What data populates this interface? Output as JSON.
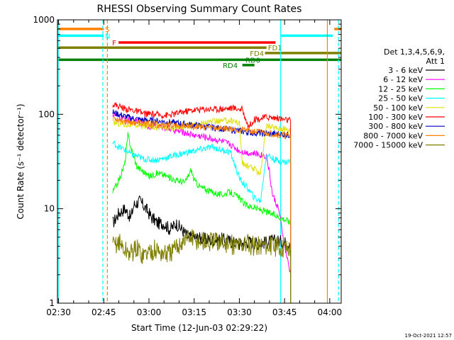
{
  "chart_data": {
    "type": "line",
    "title": "RHESSI Observing Summary Count Rates",
    "xlabel": "Start Time (12-Jun-03 02:29:22)",
    "ylabel": "Count Rate (s⁻¹ detector⁻¹)",
    "yscale": "log",
    "ylim": [
      1,
      1000
    ],
    "xlim_minutes": [
      -0.37,
      93.8
    ],
    "xticks": [
      {
        "label": "02:30",
        "t": 0
      },
      {
        "label": "02:45",
        "t": 15
      },
      {
        "label": "03:00",
        "t": 30
      },
      {
        "label": "03:15",
        "t": 45
      },
      {
        "label": "03:30",
        "t": 60
      },
      {
        "label": "03:45",
        "t": 75
      },
      {
        "label": "04:00",
        "t": 90
      }
    ],
    "yticks": [
      {
        "label": "1",
        "v": 1
      },
      {
        "label": "10",
        "v": 10
      },
      {
        "label": "100",
        "v": 100
      },
      {
        "label": "1000",
        "v": 1000
      }
    ],
    "legend_header": [
      "Det 1,3,4,5,6,9,",
      "Att 1"
    ],
    "series": [
      {
        "name": "3 - 6 keV",
        "color": "#000000",
        "t": [
          18,
          20,
          22,
          24,
          25,
          27,
          29,
          31,
          33,
          35,
          37,
          39,
          41,
          43,
          45,
          48,
          51,
          54,
          57,
          60,
          63,
          66,
          69,
          72,
          74,
          76,
          77
        ],
        "values": [
          7,
          9,
          10,
          8,
          11,
          12,
          10,
          8,
          7,
          7,
          6,
          7,
          6,
          5,
          5,
          4.8,
          4.6,
          4.8,
          4.5,
          4.2,
          4.5,
          4.3,
          4.4,
          4.6,
          4.5,
          4.3,
          4.4
        ]
      },
      {
        "name": "6 - 12 keV",
        "color": "#ff00ff",
        "t": [
          18,
          20,
          22,
          25,
          28,
          30,
          33,
          36,
          39,
          42,
          45,
          48,
          51,
          54,
          57,
          60,
          63,
          66,
          69,
          70,
          71,
          73,
          75,
          77
        ],
        "values": [
          100,
          93,
          88,
          85,
          80,
          75,
          74,
          72,
          67,
          64,
          60,
          58,
          55,
          52,
          48,
          41,
          39,
          38,
          36,
          24,
          14,
          10,
          4,
          2
        ]
      },
      {
        "name": "12 - 25 keV",
        "color": "#00ff00",
        "t": [
          18,
          20,
          22,
          23,
          24,
          25,
          26,
          28,
          30,
          33,
          36,
          39,
          42,
          44,
          45,
          47,
          49,
          51,
          54,
          57,
          60,
          62,
          64,
          66,
          68,
          70,
          72,
          74,
          76,
          77
        ],
        "values": [
          15,
          20,
          30,
          60,
          45,
          35,
          28,
          25,
          22,
          24,
          22,
          20,
          19,
          26,
          20,
          17,
          16,
          15,
          14,
          15,
          13,
          11,
          10.5,
          10,
          9.5,
          9,
          8.5,
          8,
          7.5,
          7
        ]
      },
      {
        "name": "25 - 50 keV",
        "color": "#00ffff",
        "t": [
          18,
          20,
          22,
          24,
          26,
          28,
          30,
          33,
          36,
          39,
          42,
          45,
          48,
          51,
          54,
          57,
          60,
          63,
          65,
          67,
          69,
          71,
          73,
          75,
          77
        ],
        "values": [
          50,
          45,
          42,
          38,
          36,
          34,
          33,
          33,
          35,
          37,
          39,
          41,
          43,
          45,
          42,
          40,
          21,
          16,
          13,
          12,
          38,
          34,
          32,
          31,
          32
        ]
      },
      {
        "name": "50 - 100 keV",
        "color": "#e0e000",
        "t": [
          18,
          20,
          22,
          25,
          28,
          31,
          34,
          37,
          40,
          43,
          46,
          49,
          52,
          55,
          58,
          60,
          61,
          63,
          65,
          67,
          69,
          72,
          75,
          77
        ],
        "values": [
          82,
          80,
          78,
          77,
          75,
          75,
          72,
          70,
          73,
          76,
          79,
          82,
          84,
          85,
          86,
          80,
          30,
          28,
          26,
          24,
          75,
          72,
          70,
          68
        ]
      },
      {
        "name": "100 - 300 keV",
        "color": "#ff0000",
        "t": [
          18,
          20,
          22,
          25,
          28,
          31,
          34,
          37,
          40,
          43,
          46,
          49,
          52,
          55,
          58,
          61,
          63,
          65,
          67,
          69,
          71,
          73,
          75,
          77
        ],
        "values": [
          128,
          122,
          115,
          110,
          102,
          100,
          98,
          98,
          104,
          109,
          112,
          114,
          113,
          115,
          117,
          112,
          74,
          88,
          90,
          94,
          92,
          91,
          88,
          86
        ]
      },
      {
        "name": "300 - 800 keV",
        "color": "#0000c0",
        "t": [
          18,
          20,
          22,
          25,
          28,
          31,
          34,
          37,
          40,
          43,
          46,
          49,
          52,
          55,
          58,
          61,
          64,
          67,
          70,
          73,
          75,
          77
        ],
        "values": [
          105,
          100,
          95,
          90,
          87,
          86,
          84,
          82,
          80,
          78,
          76,
          74,
          72,
          70,
          68,
          66,
          64,
          63,
          62,
          62,
          61,
          60
        ]
      },
      {
        "name": "800 - 7000 keV",
        "color": "#ff8000",
        "t": [
          18,
          20,
          22,
          25,
          28,
          31,
          34,
          37,
          40,
          43,
          46,
          49,
          52,
          55,
          58,
          61,
          64,
          67,
          70,
          73,
          75,
          77
        ],
        "values": [
          92,
          88,
          85,
          82,
          80,
          79,
          78,
          77,
          76,
          75,
          74,
          73,
          72,
          71,
          70,
          68,
          66,
          65,
          63,
          61,
          60,
          59
        ]
      },
      {
        "name": "7000 - 15000 keV",
        "color": "#808000",
        "t": [
          18,
          20,
          22,
          24,
          26,
          28,
          30,
          32,
          34,
          36,
          38,
          40,
          42,
          44,
          46,
          48,
          50,
          53,
          56,
          59,
          62,
          65,
          68,
          71,
          74,
          77
        ],
        "values": [
          4,
          4.5,
          3.6,
          3.4,
          3.8,
          3.2,
          3.5,
          3.7,
          3.4,
          3.3,
          3.5,
          4.2,
          4.8,
          5,
          4.6,
          4.5,
          4.4,
          4.5,
          4.2,
          4.1,
          4.3,
          4.0,
          4.2,
          4.0,
          3.9,
          3.8
        ]
      }
    ],
    "flag_bars": [
      {
        "label": "S",
        "color": "#ff8000",
        "label_color": "#ff8000",
        "y_value": 800,
        "segments": [
          [
            -0.37,
            15
          ],
          [
            91.5,
            93.8
          ]
        ],
        "label_t": 15.4
      },
      {
        "label": "N",
        "color": "#00ffff",
        "label_color": "#00ffff",
        "y_value": 680,
        "segments": [
          [
            -0.37,
            15
          ],
          [
            73.8,
            91
          ]
        ],
        "label_t": 15.4
      },
      {
        "label": "F",
        "color": "#ff0000",
        "label_color": "#ff0000",
        "y_value": 575,
        "segments": [
          [
            19.9,
            72
          ]
        ],
        "label_t": 17.8
      },
      {
        "label": "FD1",
        "color": "#808000",
        "label_color": "#808000",
        "y_value": 508,
        "segments": [
          [
            -0.37,
            69
          ]
        ],
        "label_t": 69.5
      },
      {
        "label": "FD4",
        "color": "#808000",
        "label_color": "#808000",
        "y_value": 445,
        "segments": [
          [
            68.5,
            93.8
          ]
        ],
        "label_t": 63.5
      },
      {
        "label": "RD0",
        "color": "#008000",
        "label_color": "#008000",
        "y_value": 378,
        "segments": [
          [
            -0.37,
            93.8
          ]
        ],
        "label_t": 62
      },
      {
        "label": "RD4",
        "color": "#008000",
        "label_color": "#008000",
        "y_value": 332,
        "segments": [
          [
            61,
            65
          ]
        ],
        "label_t": 54.5
      }
    ],
    "vertical_lines": [
      {
        "t": -0.1,
        "color": "#00ffff",
        "style": "solid"
      },
      {
        "t": 14.7,
        "color": "#00ffff",
        "style": "dashed"
      },
      {
        "t": 16.2,
        "color": "#ff8000",
        "style": "dashed"
      },
      {
        "t": 73.7,
        "color": "#00ffff",
        "style": "solid"
      },
      {
        "t": 89.2,
        "color": "#ff8000",
        "style": "solid"
      },
      {
        "t": 92.9,
        "color": "#00ffff",
        "style": "dashed"
      }
    ],
    "timestamp": "19-Oct-2021 12:57"
  }
}
